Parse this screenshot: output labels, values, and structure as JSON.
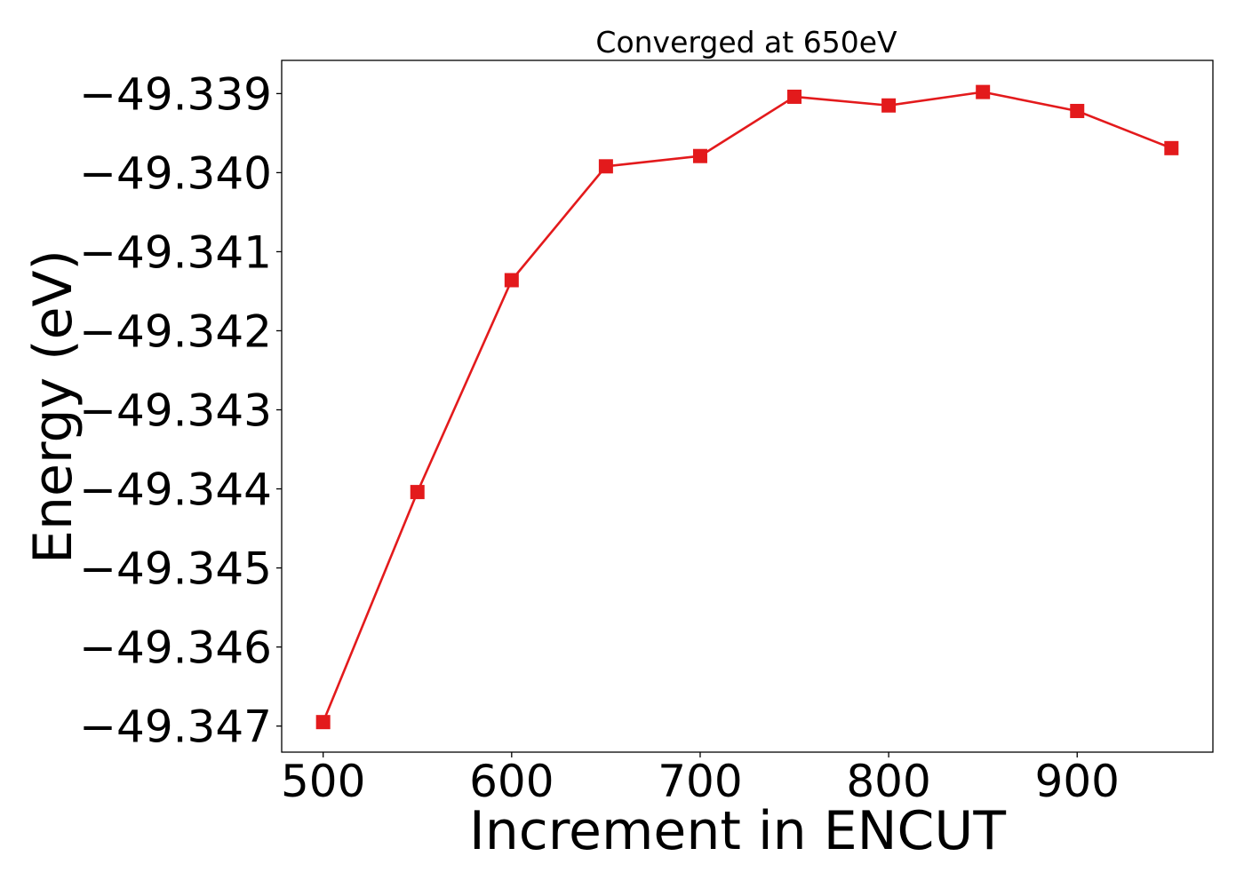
{
  "chart_data": {
    "type": "line",
    "title": "Converged at 650eV",
    "xlabel": "Increment in ENCUT",
    "ylabel": "Energy (eV)",
    "x": [
      500,
      550,
      600,
      650,
      700,
      750,
      800,
      850,
      900,
      950
    ],
    "series": [
      {
        "values": [
          -49.34695,
          -49.34404,
          -49.34136,
          -49.33992,
          -49.33979,
          -49.33904,
          -49.33915,
          -49.33898,
          -49.33922,
          -49.33969
        ],
        "color": "#e31a1c",
        "marker": "square"
      }
    ],
    "xlim": [
      478,
      972
    ],
    "ylim": [
      -49.34733,
      -49.33858
    ],
    "xticks": [
      500,
      600,
      700,
      800,
      900
    ],
    "xtick_labels": [
      "500",
      "600",
      "700",
      "800",
      "900"
    ],
    "yticks": [
      -49.347,
      -49.346,
      -49.345,
      -49.344,
      -49.343,
      -49.342,
      -49.341,
      -49.34,
      -49.339
    ],
    "ytick_labels": [
      "−49.347",
      "−49.346",
      "−49.345",
      "−49.344",
      "−49.343",
      "−49.342",
      "−49.341",
      "−49.340",
      "−49.339"
    ],
    "grid": false,
    "legend": "none"
  }
}
